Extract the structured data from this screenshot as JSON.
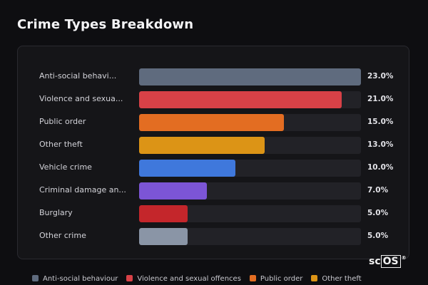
{
  "title": "Crime Types Breakdown",
  "watermark": {
    "prefix": "sc",
    "boxed": "OS",
    "mark": "®"
  },
  "chart_data": {
    "type": "bar",
    "orientation": "horizontal",
    "title": "Crime Types Breakdown",
    "categories": [
      "Anti-social behavi...",
      "Violence and sexua...",
      "Public order",
      "Other theft",
      "Vehicle crime",
      "Criminal damage an...",
      "Burglary",
      "Other crime"
    ],
    "values": [
      23.0,
      21.0,
      15.0,
      13.0,
      10.0,
      7.0,
      5.0,
      5.0
    ],
    "value_labels": [
      "23.0%",
      "21.0%",
      "15.0%",
      "13.0%",
      "10.0%",
      "7.0%",
      "5.0%",
      "5.0%"
    ],
    "colors": [
      "#5f6b7e",
      "#d84147",
      "#e36d22",
      "#dc9416",
      "#3f78dc",
      "#7c55d6",
      "#c4262b",
      "#8a95a6"
    ],
    "xlim": [
      0,
      23.0
    ],
    "grid": false
  },
  "legend": [
    {
      "label": "Anti-social behaviour",
      "color": "#5f6b7e"
    },
    {
      "label": "Violence and sexual offences",
      "color": "#d84147"
    },
    {
      "label": "Public order",
      "color": "#e36d22"
    },
    {
      "label": "Other theft",
      "color": "#dc9416"
    }
  ]
}
